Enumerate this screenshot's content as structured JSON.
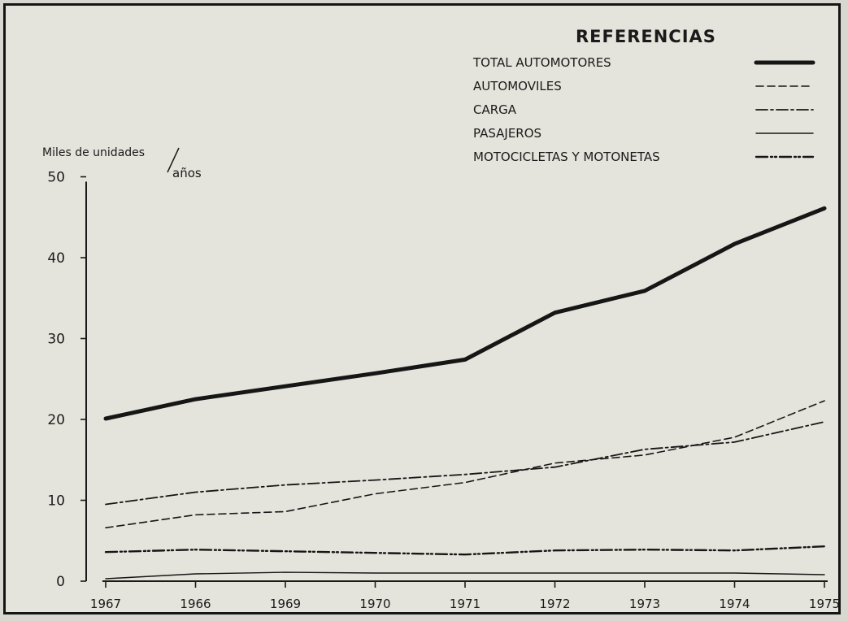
{
  "chart_data": {
    "type": "line",
    "title": "",
    "ylabel": "Miles de unidades",
    "ylabel_suffix": "años",
    "ylim": [
      0,
      50
    ],
    "yticks": [
      0,
      10,
      20,
      30,
      40,
      50
    ],
    "yticks_labels": [
      "0",
      "10",
      "20",
      "30",
      "40",
      "50"
    ],
    "grid": false,
    "legend_title": "REFERENCIAS",
    "legend_position": "top-right",
    "categories": [
      "1967",
      "1966",
      "1969",
      "1970",
      "1971",
      "1972",
      "1973",
      "1974",
      "1975"
    ],
    "series": [
      {
        "name": "TOTAL AUTOMOTORES",
        "style": "solid-thick",
        "values": [
          20.1,
          22.5,
          24.1,
          25.7,
          27.4,
          33.2,
          35.9,
          41.7,
          46.1
        ]
      },
      {
        "name": "AUTOMOVILES",
        "style": "dashed",
        "values": [
          6.6,
          8.2,
          8.6,
          10.8,
          12.2,
          14.6,
          15.6,
          17.8,
          22.3
        ]
      },
      {
        "name": "CARGA",
        "style": "dash-dot",
        "values": [
          9.5,
          11.0,
          11.9,
          12.5,
          13.2,
          14.1,
          16.3,
          17.2,
          19.7
        ]
      },
      {
        "name": "PASAJEROS",
        "style": "solid-thin",
        "values": [
          0.3,
          0.9,
          1.1,
          1.0,
          1.0,
          1.0,
          1.0,
          1.0,
          0.8
        ]
      },
      {
        "name": "MOTOCICLETAS Y MOTONETAS",
        "style": "dash-dot-dot",
        "values": [
          3.6,
          3.9,
          3.7,
          3.5,
          3.3,
          3.8,
          3.9,
          3.8,
          4.3
        ]
      }
    ]
  }
}
